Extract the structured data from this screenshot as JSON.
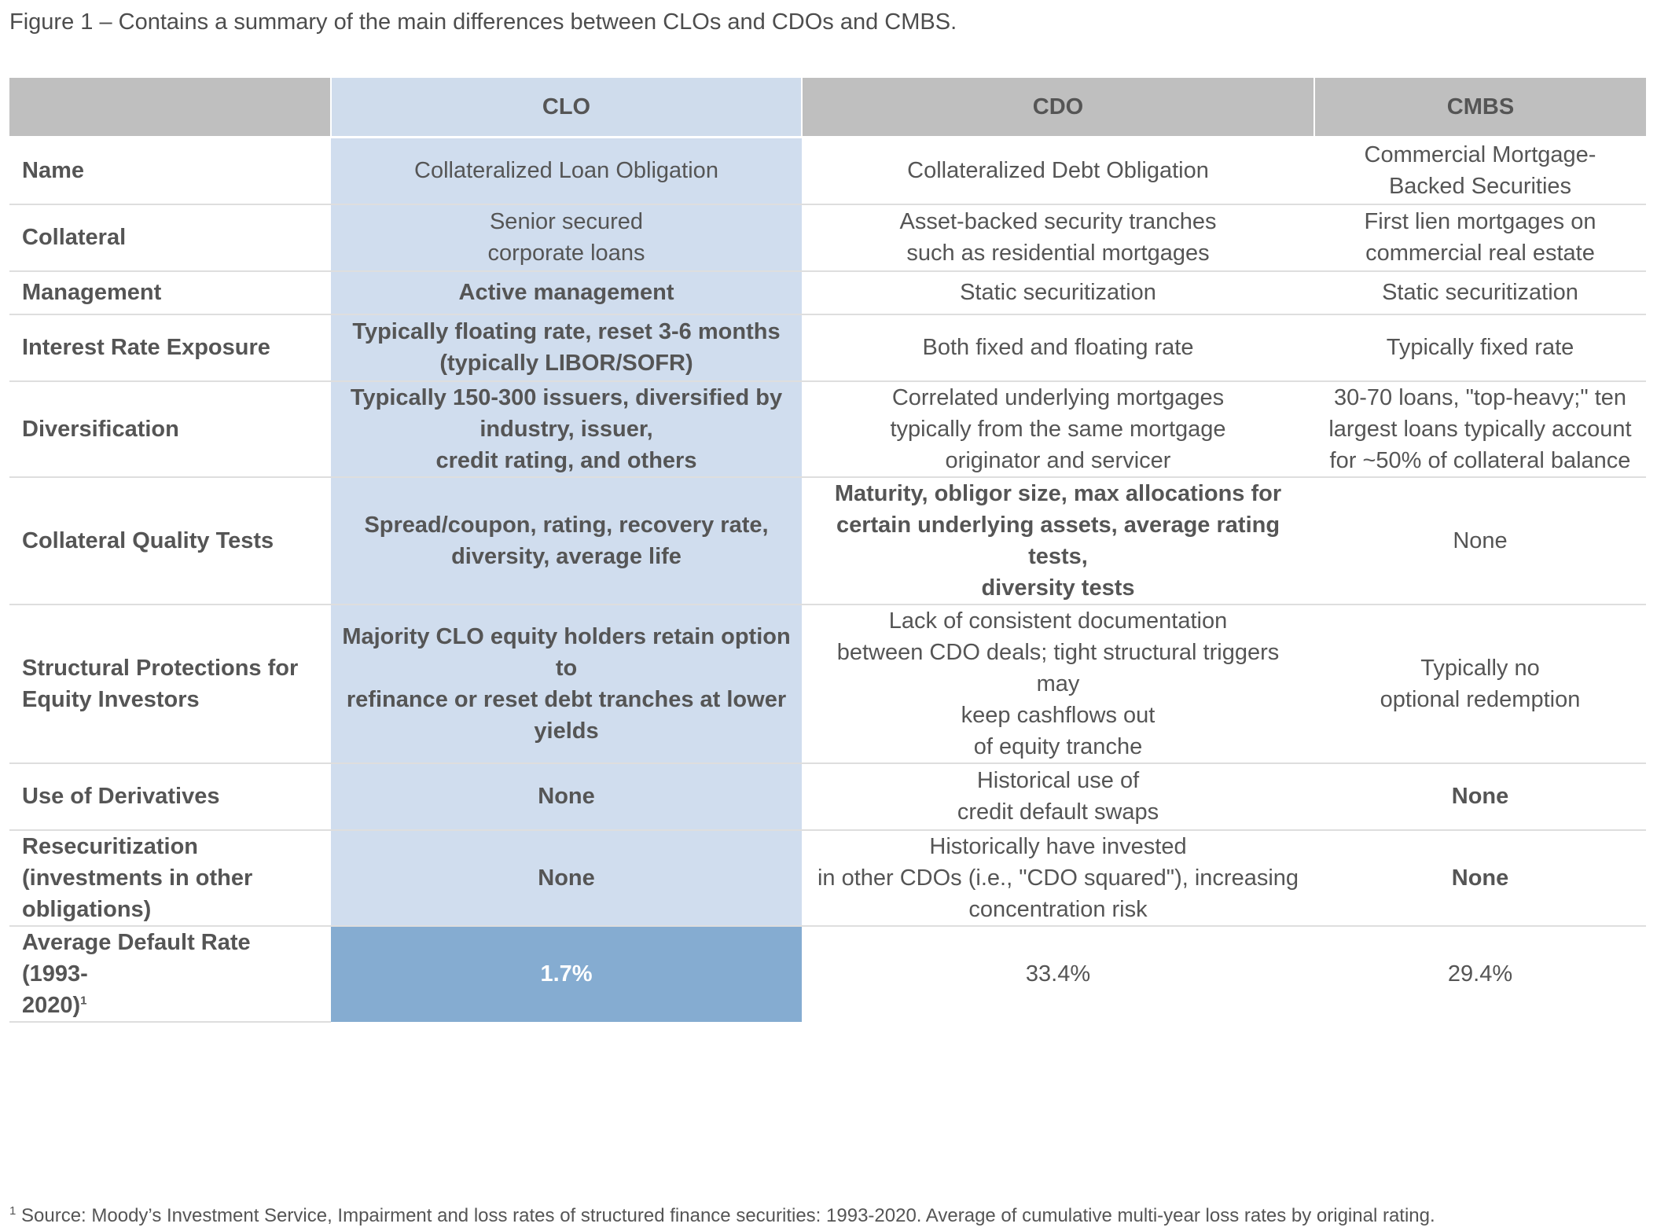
{
  "caption": "Figure 1 – Contains a summary of the main differences between CLOs and CDOs and CMBS.",
  "header": {
    "corner": "",
    "clo": "CLO",
    "cdo": "CDO",
    "cmbs": "CMBS"
  },
  "rows": [
    {
      "label": "Name",
      "clo": "Collateralized Loan Obligation",
      "cdo": "Collateralized Debt Obligation",
      "cmbs": "Commercial Mortgage-\nBacked Securities"
    },
    {
      "label": "Collateral",
      "clo": "Senior secured\ncorporate loans",
      "cdo": "Asset-backed security tranches\nsuch as residential mortgages",
      "cmbs": "First lien mortgages on\ncommercial real estate"
    },
    {
      "label": "Management",
      "clo": "Active management",
      "cdo": "Static securitization",
      "cmbs": "Static securitization"
    },
    {
      "label": "Interest Rate Exposure",
      "clo": "Typically floating rate, reset 3-6 months\n(typically LIBOR/SOFR)",
      "cdo": "Both fixed and floating rate",
      "cmbs": "Typically fixed rate"
    },
    {
      "label": "Diversification",
      "clo": "Typically 150-300 issuers, diversified by\nindustry, issuer,\ncredit rating, and others",
      "cdo": "Correlated underlying mortgages\ntypically from the same mortgage\noriginator and servicer",
      "cmbs": "30-70 loans, \"top-heavy;\" ten\nlargest loans typically account\nfor ~50% of collateral balance"
    },
    {
      "label": "Collateral Quality Tests",
      "clo": "Spread/coupon, rating, recovery rate,\ndiversity, average life",
      "cdo": "Maturity, obligor size, max allocations for\ncertain underlying assets, average rating tests,\ndiversity tests",
      "cmbs": "None"
    },
    {
      "label": "Structural Protections for\nEquity Investors",
      "clo": "Majority CLO equity holders retain option to\nrefinance or reset debt tranches at lower\nyields",
      "cdo": "Lack of consistent documentation\nbetween CDO deals; tight structural triggers may\nkeep cashflows out\nof equity tranche",
      "cmbs": "Typically no\noptional redemption"
    },
    {
      "label": "Use of Derivatives",
      "clo": "None",
      "cdo": "Historical use of\ncredit default swaps",
      "cmbs": "None"
    },
    {
      "label": "Resecuritization\n(investments in other\nobligations)",
      "clo": "None",
      "cdo": "Historically have invested\nin other CDOs (i.e., \"CDO squared\"), increasing\nconcentration risk",
      "cmbs": "None"
    },
    {
      "label": "Average Default Rate (1993-\n2020)",
      "label_sup": "1",
      "clo": "1.7%",
      "cdo": "33.4%",
      "cmbs": "29.4%"
    }
  ],
  "footnote": {
    "marker": "1",
    "text": " Source: Moody’s Investment Service, Impairment and loss rates of structured finance securities: 1993-2020. Average of cumulative multi-year loss rates by original rating."
  },
  "colors": {
    "header_gray": "#bfbfbf",
    "clo_column": "#d0ddee",
    "clo_highlight": "#85acd1",
    "text": "#555555"
  }
}
